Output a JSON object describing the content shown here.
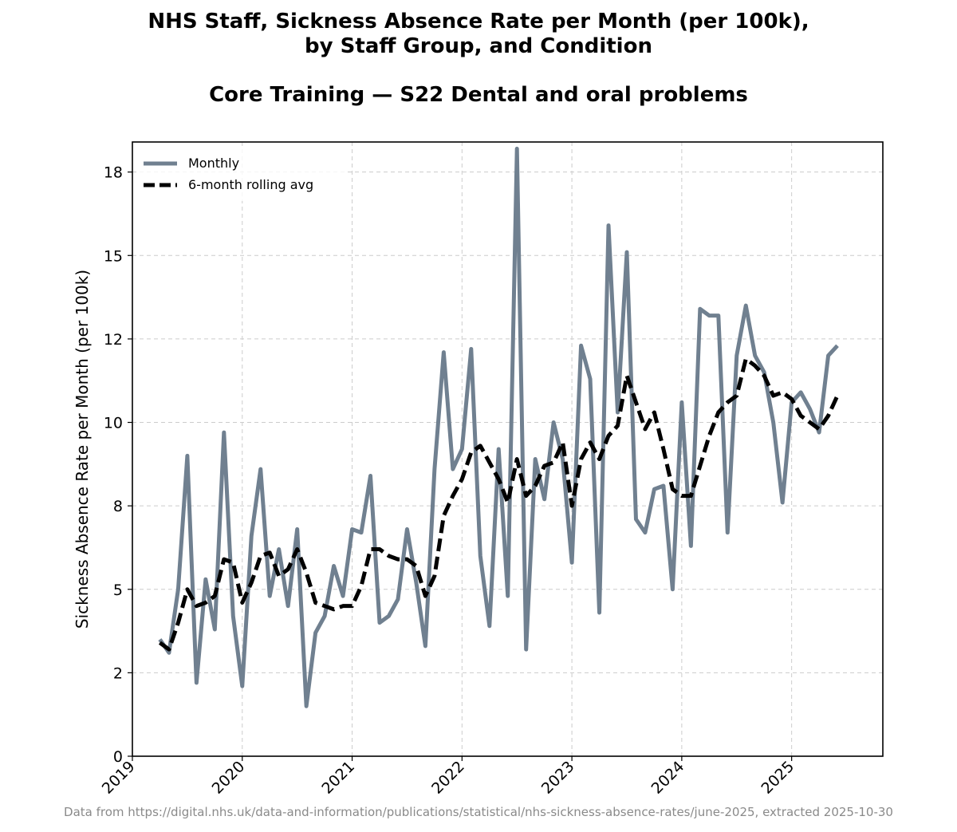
{
  "title_line1": "NHS Staff, Sickness Absence Rate per Month (per 100k),",
  "title_line2": "by Staff Group, and Condition",
  "subtitle": "Core Training — S22 Dental and oral problems",
  "source": "Data from https://digital.nhs.uk/data-and-information/publications/statistical/nhs-sickness-absence-rates/june-2025, extracted 2025-10-30",
  "colors": {
    "monthly": "#708090",
    "rolling": "#000000",
    "grid": "#cccccc"
  },
  "chart_data": {
    "type": "line",
    "title": "NHS Staff, Sickness Absence Rate per Month (per 100k), by Staff Group, and Condition",
    "subtitle": "Core Training — S22 Dental and oral problems",
    "xlabel": "",
    "ylabel": "Sickness Absence Rate per Month (per 100k)",
    "x_start": "2019-04",
    "x_end": "2025-06",
    "xlim": [
      2019.0,
      2025.83
    ],
    "ylim": [
      0,
      18.4
    ],
    "yticks": [
      0,
      2.5,
      5,
      7.5,
      10,
      12.5,
      15,
      17.5
    ],
    "ytick_labels": [
      "0",
      "2",
      "5",
      "8",
      "10",
      "12",
      "15",
      "18"
    ],
    "xtick_labels": [
      "2019",
      "2020",
      "2021",
      "2022",
      "2023",
      "2024",
      "2025"
    ],
    "grid": true,
    "legend_position": "top-left",
    "series": [
      {
        "name": "Monthly",
        "style": "solid",
        "values": [
          3.5,
          3.1,
          5.0,
          9.0,
          2.2,
          5.3,
          3.8,
          9.7,
          4.2,
          2.1,
          6.6,
          8.6,
          4.8,
          6.2,
          4.5,
          6.8,
          1.5,
          3.7,
          4.2,
          5.7,
          4.8,
          6.8,
          6.7,
          8.4,
          4.0,
          4.2,
          4.7,
          6.8,
          5.2,
          3.3,
          8.6,
          12.1,
          8.6,
          9.2,
          12.2,
          6.0,
          3.9,
          9.2,
          4.8,
          18.2,
          3.2,
          8.9,
          7.7,
          10.0,
          8.9,
          5.8,
          12.3,
          11.3,
          4.3,
          15.9,
          10.3,
          15.1,
          7.1,
          6.7,
          8.0,
          8.1,
          5.0,
          10.6,
          6.3,
          13.4,
          13.2,
          13.2,
          6.7,
          12.0,
          13.5,
          12.0,
          11.5,
          10.0,
          7.6,
          10.6,
          10.9,
          10.4,
          9.7,
          12.0,
          12.3
        ]
      },
      {
        "name": "6-month rolling avg",
        "style": "dashed",
        "values": [
          3.4,
          3.2,
          4.0,
          5.0,
          4.5,
          4.6,
          4.8,
          5.9,
          5.8,
          4.6,
          5.2,
          6.0,
          6.1,
          5.4,
          5.6,
          6.2,
          5.5,
          4.6,
          4.5,
          4.4,
          4.5,
          4.5,
          5.1,
          6.2,
          6.2,
          6.0,
          5.9,
          5.9,
          5.7,
          4.8,
          5.4,
          7.2,
          7.8,
          8.3,
          9.1,
          9.3,
          8.8,
          8.3,
          7.6,
          8.9,
          7.8,
          8.1,
          8.7,
          8.8,
          9.4,
          7.5,
          8.9,
          9.4,
          8.9,
          9.6,
          9.9,
          11.4,
          10.6,
          9.8,
          10.3,
          9.2,
          8.0,
          7.8,
          7.8,
          8.7,
          9.6,
          10.3,
          10.6,
          10.8,
          11.9,
          11.7,
          11.4,
          10.8,
          10.9,
          10.7,
          10.2,
          10.0,
          9.8,
          10.2,
          10.8
        ]
      }
    ]
  }
}
